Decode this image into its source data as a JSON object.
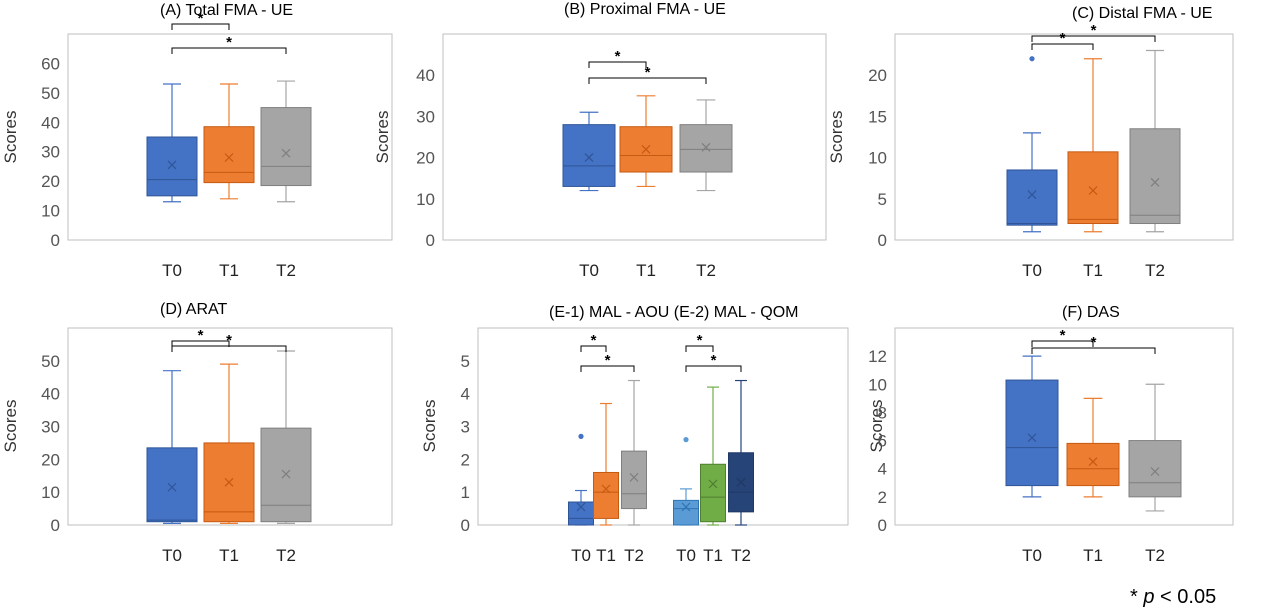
{
  "significance_note": {
    "prefix": "* ",
    "italic": "p",
    "suffix": " < 0.05"
  },
  "colors": {
    "T0": "#4472C4",
    "T0_dark": "#2F5597",
    "T1": "#ED7D31",
    "T1_dark": "#C55A11",
    "T2": "#A5A5A5",
    "T2_dark": "#7F7F7F",
    "light_blue": "#5B9BD5",
    "light_blue_dark": "#2E75B6",
    "green": "#70AD47",
    "green_dark": "#507E32",
    "navy": "#264478",
    "navy_dark": "#1F3864",
    "frame": "#BFBFBF"
  },
  "chart_data": [
    {
      "type": "box",
      "panel": "A",
      "title": "(A)  Total FMA - UE",
      "ylabel": "Scores",
      "ylim": [
        0,
        70
      ],
      "yticks": [
        0,
        10,
        20,
        30,
        40,
        50,
        60
      ],
      "categories": [
        "T0",
        "T1",
        "T2"
      ],
      "boxes": [
        {
          "name": "T0",
          "color": "T0",
          "min": 13,
          "q1": 15,
          "median": 20.5,
          "q3": 35,
          "max": 53,
          "mean": 25.5,
          "outliers": []
        },
        {
          "name": "T1",
          "color": "T1",
          "min": 14,
          "q1": 19.5,
          "median": 23,
          "q3": 38.5,
          "max": 53,
          "mean": 28,
          "outliers": []
        },
        {
          "name": "T2",
          "color": "T2",
          "min": 13,
          "q1": 18.5,
          "median": 25,
          "q3": 45,
          "max": 54,
          "mean": 29.5,
          "outliers": []
        }
      ],
      "significance": [
        {
          "from": "T0",
          "to": "T1",
          "label": "*"
        },
        {
          "from": "T0",
          "to": "T2",
          "label": "*"
        }
      ]
    },
    {
      "type": "box",
      "panel": "B",
      "title": "(B)   Proximal FMA - UE",
      "ylabel": "Scores",
      "ylim": [
        0,
        50
      ],
      "yticks": [
        0,
        10,
        20,
        30,
        40
      ],
      "categories": [
        "T0",
        "T1",
        "T2"
      ],
      "boxes": [
        {
          "name": "T0",
          "color": "T0",
          "min": 12,
          "q1": 13,
          "median": 18,
          "q3": 28,
          "max": 31,
          "mean": 20,
          "outliers": []
        },
        {
          "name": "T1",
          "color": "T1",
          "min": 13,
          "q1": 16.5,
          "median": 20.5,
          "q3": 27.5,
          "max": 35,
          "mean": 22,
          "outliers": []
        },
        {
          "name": "T2",
          "color": "T2",
          "min": 12,
          "q1": 16.5,
          "median": 22,
          "q3": 28,
          "max": 34,
          "mean": 22.5,
          "outliers": []
        }
      ],
      "significance": [
        {
          "from": "T0",
          "to": "T1",
          "label": "*"
        },
        {
          "from": "T0",
          "to": "T2",
          "label": "*"
        }
      ]
    },
    {
      "type": "box",
      "panel": "C",
      "title": "(C)   Distal FMA - UE",
      "ylabel": "Scores",
      "ylim": [
        0,
        25
      ],
      "yticks": [
        0,
        5,
        10,
        15,
        20
      ],
      "categories": [
        "T0",
        "T1",
        "T2"
      ],
      "boxes": [
        {
          "name": "T0",
          "color": "T0",
          "min": 1,
          "q1": 1.8,
          "median": 2,
          "q3": 8.5,
          "max": 13,
          "mean": 5.5,
          "outliers": [
            22
          ]
        },
        {
          "name": "T1",
          "color": "T1",
          "min": 1,
          "q1": 2,
          "median": 2.5,
          "q3": 10.7,
          "max": 22,
          "mean": 6,
          "outliers": []
        },
        {
          "name": "T2",
          "color": "T2",
          "min": 1,
          "q1": 2,
          "median": 3,
          "q3": 13.5,
          "max": 23,
          "mean": 7,
          "outliers": []
        }
      ],
      "significance": [
        {
          "from": "T0",
          "to": "T1",
          "label": "*"
        },
        {
          "from": "T0",
          "to": "T2",
          "label": "*"
        }
      ]
    },
    {
      "type": "box",
      "panel": "D",
      "title": "(D)      ARAT",
      "ylabel": "Scores",
      "ylim": [
        0,
        60
      ],
      "yticks": [
        0,
        10,
        20,
        30,
        40,
        50
      ],
      "categories": [
        "T0",
        "T1",
        "T2"
      ],
      "boxes": [
        {
          "name": "T0",
          "color": "T0",
          "min": 0.5,
          "q1": 1,
          "median": 1.5,
          "q3": 23.5,
          "max": 47,
          "mean": 11.5,
          "outliers": []
        },
        {
          "name": "T1",
          "color": "T1",
          "min": 0.5,
          "q1": 1,
          "median": 4,
          "q3": 25,
          "max": 49,
          "mean": 13,
          "outliers": []
        },
        {
          "name": "T2",
          "color": "T2",
          "min": 0.5,
          "q1": 1,
          "median": 6,
          "q3": 29.5,
          "max": 53,
          "mean": 15.5,
          "outliers": []
        }
      ],
      "significance": [
        {
          "from": "T0",
          "to": "T1",
          "label": "*"
        },
        {
          "from": "T0",
          "to": "T2",
          "label": "*"
        }
      ]
    },
    {
      "type": "box",
      "panel": "E",
      "title": "(E-1)   MAL - AOU  (E-2)   MAL - QOM",
      "ylabel": "Scores",
      "ylim": [
        0,
        6
      ],
      "yticks": [
        0,
        1,
        2,
        3,
        4,
        5
      ],
      "categories": [
        "T0",
        "T1",
        "T2",
        "T0",
        "T1",
        "T2"
      ],
      "boxes": [
        {
          "name": "T0",
          "color": "T0",
          "min": 0,
          "q1": 0,
          "median": 0.2,
          "q3": 0.7,
          "max": 1.05,
          "mean": 0.55,
          "outliers": [
            2.7
          ]
        },
        {
          "name": "T1",
          "color": "T1",
          "min": 0,
          "q1": 0.2,
          "median": 1,
          "q3": 1.6,
          "max": 3.7,
          "mean": 1.1,
          "outliers": []
        },
        {
          "name": "T2",
          "color": "T2",
          "min": 0,
          "q1": 0.5,
          "median": 0.95,
          "q3": 2.25,
          "max": 4.4,
          "mean": 1.45,
          "outliers": []
        },
        {
          "name": "T0",
          "color": "light_blue",
          "min": 0,
          "q1": 0,
          "median": 0.5,
          "q3": 0.75,
          "max": 1.1,
          "mean": 0.55,
          "outliers": [
            2.6
          ]
        },
        {
          "name": "T1",
          "color": "green",
          "min": 0,
          "q1": 0.1,
          "median": 0.85,
          "q3": 1.85,
          "max": 4.2,
          "mean": 1.25,
          "outliers": []
        },
        {
          "name": "T2",
          "color": "navy",
          "min": 0,
          "q1": 0.4,
          "median": 1,
          "q3": 2.2,
          "max": 4.4,
          "mean": 1.3,
          "outliers": []
        }
      ],
      "significance": [
        {
          "from": 0,
          "to": 1,
          "label": "*"
        },
        {
          "from": 0,
          "to": 2,
          "label": "*"
        },
        {
          "from": 3,
          "to": 4,
          "label": "*"
        },
        {
          "from": 3,
          "to": 5,
          "label": "*"
        }
      ]
    },
    {
      "type": "box",
      "panel": "F",
      "title": "(F)    DAS",
      "ylabel": "Scores",
      "ylim": [
        0,
        14
      ],
      "yticks": [
        0,
        2,
        4,
        6,
        8,
        10,
        12
      ],
      "categories": [
        "T0",
        "T1",
        "T2"
      ],
      "boxes": [
        {
          "name": "T0",
          "color": "T0",
          "min": 2,
          "q1": 2.8,
          "median": 5.5,
          "q3": 10.3,
          "max": 12,
          "mean": 6.2,
          "outliers": []
        },
        {
          "name": "T1",
          "color": "T1",
          "min": 2,
          "q1": 2.8,
          "median": 4,
          "q3": 5.8,
          "max": 9,
          "mean": 4.5,
          "outliers": []
        },
        {
          "name": "T2",
          "color": "T2",
          "min": 1,
          "q1": 2,
          "median": 3,
          "q3": 6,
          "max": 10,
          "mean": 3.8,
          "outliers": []
        }
      ],
      "significance": [
        {
          "from": "T0",
          "to": "T1",
          "label": "*"
        },
        {
          "from": "T0",
          "to": "T2",
          "label": "*"
        }
      ]
    }
  ]
}
